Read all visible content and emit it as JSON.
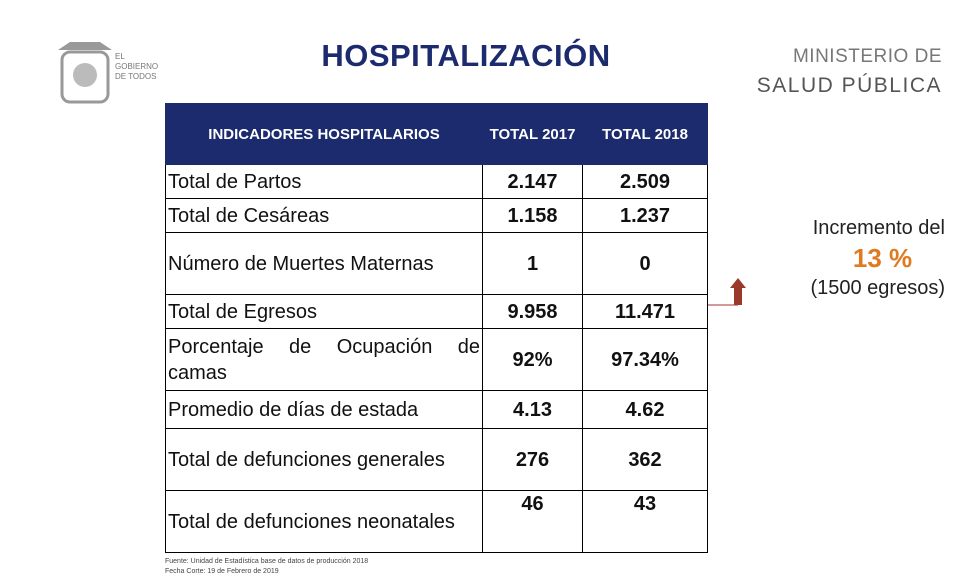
{
  "header": {
    "title": "HOSPITALIZACIÓN",
    "logo_left": [
      "EL",
      "GOBIERNO",
      "DE TODOS"
    ],
    "logo_right": [
      "MINISTERIO DE",
      "SALUD PÚBLICA"
    ]
  },
  "table": {
    "columns": [
      "INDICADORES HOSPITALARIOS",
      "TOTAL 2017",
      "TOTAL 2018"
    ],
    "rows": [
      [
        "Total de Partos",
        "2.147",
        "2.509"
      ],
      [
        "Total de Cesáreas",
        "1.158",
        "1.237"
      ],
      [
        "Número de Muertes Maternas",
        "1",
        "0"
      ],
      [
        "Total de Egresos",
        "9.958",
        "11.471"
      ],
      [
        "Porcentaje de Ocupación de camas",
        "92%",
        "97.34%"
      ],
      [
        "Promedio de días de estada",
        "4.13",
        "4.62"
      ],
      [
        "Total de defunciones generales",
        "276",
        "362"
      ],
      [
        "Total de defunciones neonatales",
        "46",
        "43"
      ]
    ]
  },
  "annotation": {
    "line1": "Incremento del",
    "highlight": "13 %",
    "line2": "(1500 egresos)"
  },
  "footer": [
    "Fuente: Unidad de Estadística base de datos de producción 2018",
    "Fecha Corte: 19 de Febrero de 2019"
  ]
}
